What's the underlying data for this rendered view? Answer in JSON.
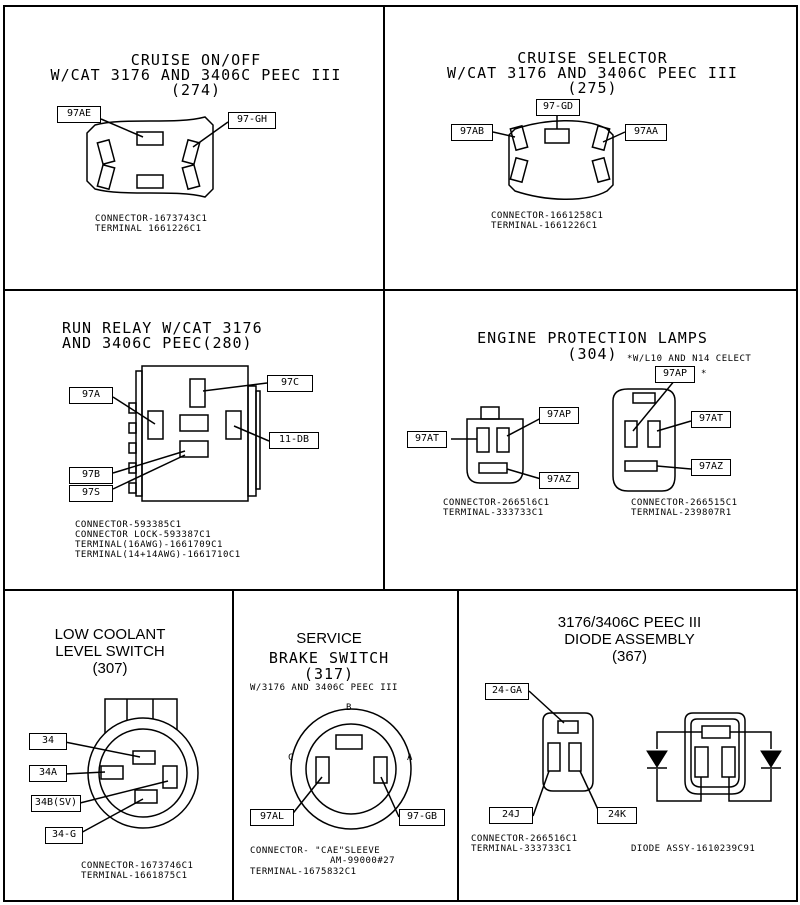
{
  "panels": {
    "cruise_onoff": {
      "title": [
        "CRUISE ON/OFF",
        "W/CAT 3176 AND 3406C PEEC III",
        "(274)"
      ],
      "labels": [
        "97AE",
        "97-GH"
      ],
      "notes": [
        "CONNECTOR-1673743C1",
        "TERMINAL 1661226C1"
      ]
    },
    "cruise_selector": {
      "title": [
        "CRUISE SELECTOR",
        "W/CAT 3176 AND 3406C PEEC III",
        "(275)"
      ],
      "labels": [
        "97-GD",
        "97AB",
        "97AA"
      ],
      "notes": [
        "CONNECTOR-1661258C1",
        "TERMINAL-1661226C1"
      ]
    },
    "run_relay": {
      "title": [
        "RUN RELAY W/CAT 3176",
        "AND 3406C PEEC(280)"
      ],
      "labels": [
        "97A",
        "97C",
        "11-DB",
        "97B",
        "97S"
      ],
      "notes": [
        "CONNECTOR-593385C1",
        "CONNECTOR LOCK-593387C1",
        "TERMINAL(16AWG)-1661709C1",
        "TERMINAL(14+14AWG)-1661710C1"
      ]
    },
    "engine_protection": {
      "title": [
        "ENGINE PROTECTION LAMPS",
        "(304)"
      ],
      "select_note": "*W/L10 AND N14 CELECT",
      "labels": [
        "97AP",
        "97AT",
        "97AZ",
        "97AP",
        "*",
        "97AT",
        "97AZ"
      ],
      "notes_left": [
        "CONNECTOR-2665l6C1",
        "TERMINAL-333733C1"
      ],
      "notes_right": [
        "CONNECTOR-266515C1",
        "TERMINAL-239807R1"
      ]
    },
    "low_coolant": {
      "title": [
        "LOW COOLANT",
        "LEVEL SWITCH",
        "(307)"
      ],
      "labels": [
        "34",
        "34A",
        "34B(SV)",
        "34-G"
      ],
      "notes": [
        "CONNECTOR-1673746C1",
        "TERMINAL-1661875C1"
      ]
    },
    "service_brake": {
      "title": [
        "SERVICE",
        "BRAKE SWITCH",
        "(317)"
      ],
      "subtitle": "W/3176 AND 3406C PEEC III",
      "pins": [
        "B",
        "C",
        "A"
      ],
      "labels": [
        "97AL",
        "97-GB"
      ],
      "notes": [
        "CONNECTOR- \"CAE\"SLEEVE",
        "AM-99000#27",
        "TERMINAL-1675832C1"
      ]
    },
    "diode_assembly": {
      "title": [
        "3176/3406C PEEC III",
        "DIODE ASSEMBLY",
        "(367)"
      ],
      "labels": [
        "24-GA",
        "24J",
        "24K"
      ],
      "notes": [
        "CONNECTOR-266516C1",
        "TERMINAL-333733C1"
      ],
      "diode_note": "DIODE ASSY-1610239C91"
    }
  }
}
